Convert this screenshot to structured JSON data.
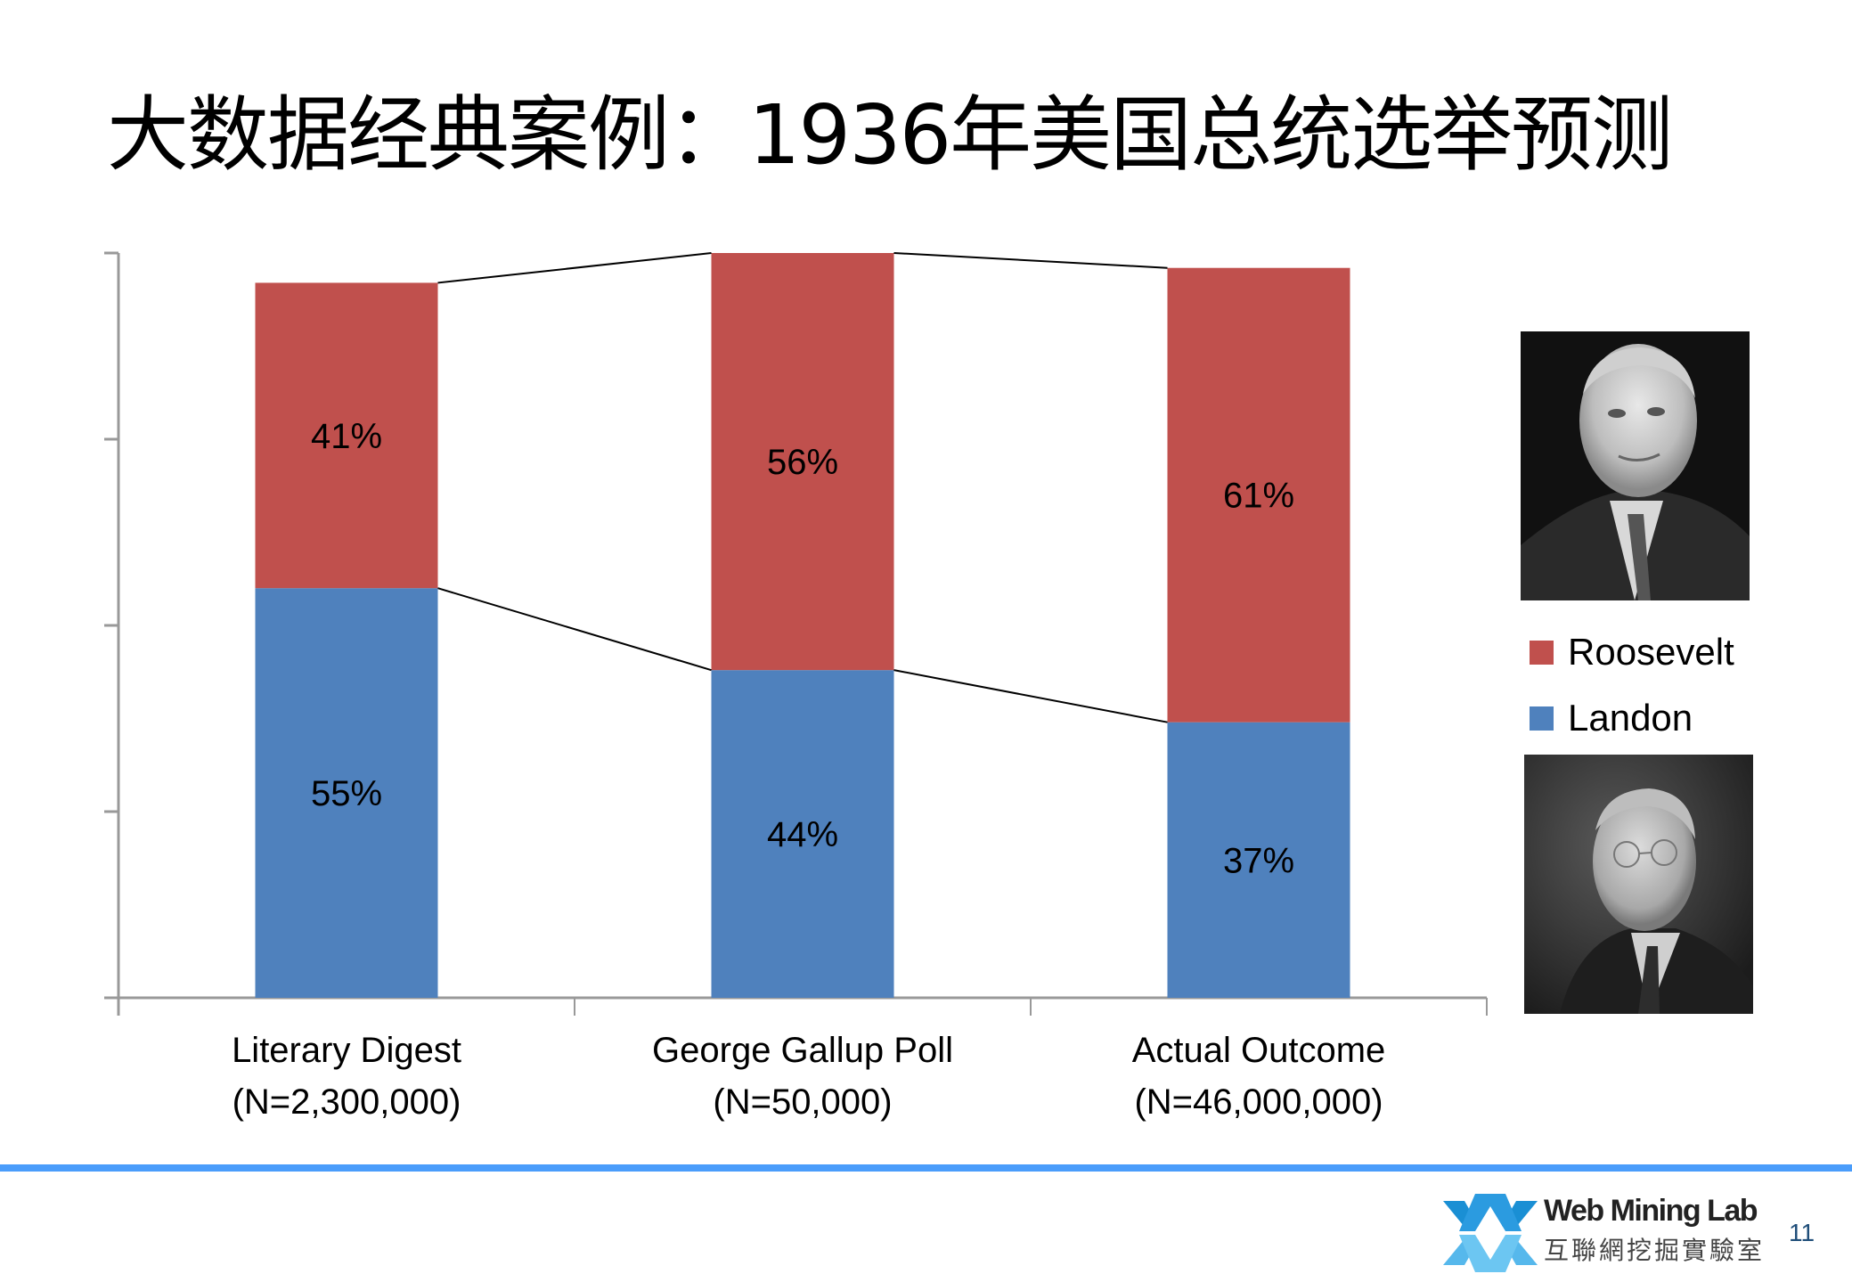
{
  "slide": {
    "title": "大数据经典案例：1936年美国总统选举预测",
    "page_number": "11"
  },
  "colors": {
    "roosevelt": "#c0504d",
    "landon": "#4f81bd",
    "axis": "#999999",
    "footer_bar": "#4a9dfb",
    "connector": "#000000"
  },
  "chart_data": {
    "type": "bar",
    "stacked": true,
    "title": "",
    "xlabel": "",
    "ylabel": "",
    "ylim": [
      0,
      100
    ],
    "y_ticks_labeled": false,
    "grid": false,
    "legend_position": "right",
    "categories": [
      "Literary Digest (N=2,300,000)",
      "George Gallup Poll (N=50,000)",
      "Actual Outcome (N=46,000,000)"
    ],
    "category_lines": [
      [
        "Literary Digest",
        "(N=2,300,000)"
      ],
      [
        "George Gallup Poll",
        "(N=50,000)"
      ],
      [
        "Actual Outcome",
        "(N=46,000,000)"
      ]
    ],
    "series": [
      {
        "name": "Landon",
        "values": [
          55,
          44,
          37
        ],
        "labels": [
          "55%",
          "44%",
          "37%"
        ],
        "color": "#4f81bd"
      },
      {
        "name": "Roosevelt",
        "values": [
          41,
          56,
          61
        ],
        "labels": [
          "41%",
          "56%",
          "61%"
        ],
        "color": "#c0504d"
      }
    ],
    "series_lines": true
  },
  "legend": {
    "items": [
      {
        "label": "Roosevelt",
        "color": "#c0504d"
      },
      {
        "label": "Landon",
        "color": "#4f81bd"
      }
    ]
  },
  "photos": [
    {
      "name": "Roosevelt portrait"
    },
    {
      "name": "Landon portrait"
    }
  ],
  "footer": {
    "logo_en": "Web Mining Lab",
    "logo_zh": "互聯網挖掘實驗室"
  }
}
